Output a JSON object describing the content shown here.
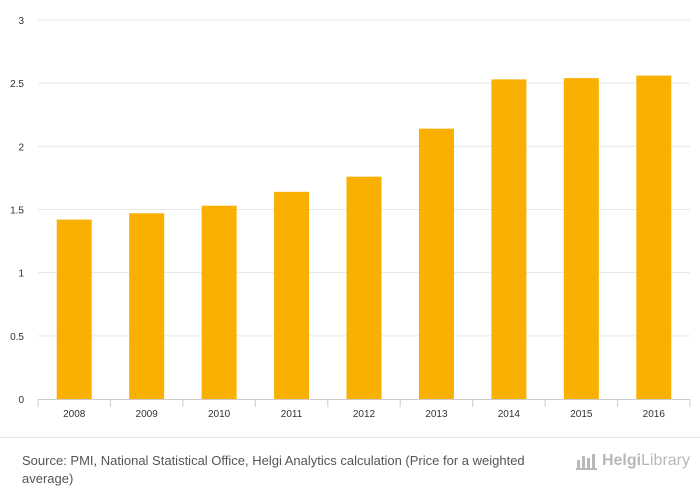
{
  "chart_data": {
    "type": "bar",
    "categories": [
      "2008",
      "2009",
      "2010",
      "2011",
      "2012",
      "2013",
      "2014",
      "2015",
      "2016"
    ],
    "values": [
      1.42,
      1.47,
      1.53,
      1.64,
      1.76,
      2.14,
      2.53,
      2.54,
      2.56
    ],
    "ylim": [
      0,
      3
    ],
    "yticks": [
      "0",
      "0.5",
      "1",
      "1.5",
      "2",
      "2.5",
      "3"
    ],
    "grid": true,
    "bar_color": "#F9B000",
    "grid_color": "#E6E6E6",
    "axis_color": "#CCCCCC"
  },
  "footer": {
    "source": "Source: PMI, National Statistical Office, Helgi Analytics calculation (Price for a weighted average)",
    "logo_bold": "Helgi",
    "logo_rest": "Library",
    "logo_icon": "helgi-library-logo-icon"
  }
}
